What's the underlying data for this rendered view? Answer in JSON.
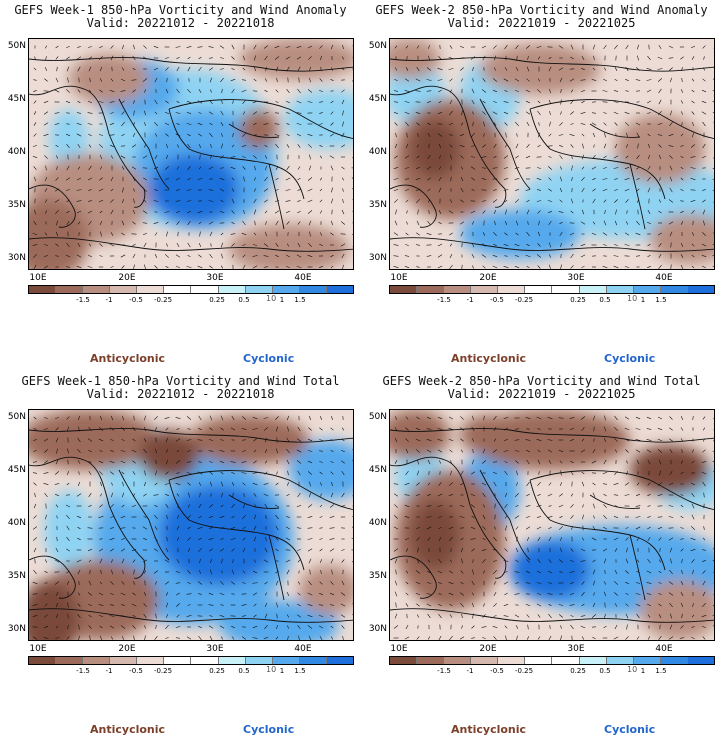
{
  "scale": {
    "colors": [
      "#7a4a3a",
      "#9c6a5a",
      "#b88e80",
      "#d6b9ae",
      "#ecdcd5",
      "#ffffff",
      "#ffffff",
      "#c9f2f8",
      "#8fd3f3",
      "#55a9ec",
      "#3189e3",
      "#1e6fdb"
    ],
    "ticks": [
      "-1.5",
      "-1",
      "-0.5",
      "-0.25",
      "0.25",
      "0.5",
      "1",
      "1.5"
    ],
    "unit": "10",
    "anticyclonic_label": "Anticyclonic",
    "cyclonic_label": "Cyclonic"
  },
  "axes": {
    "lat_labels": [
      "50N",
      "45N",
      "40N",
      "35N",
      "30N"
    ],
    "lon_labels": [
      "10E",
      "20E",
      "30E",
      "40E"
    ]
  },
  "panels": [
    {
      "title": "GEFS Week-1 850-hPa Vorticity and Wind Anomaly",
      "valid": "Valid: 20221012 - 20221018"
    },
    {
      "title": "GEFS Week-2 850-hPa Vorticity and Wind Anomaly",
      "valid": "Valid: 20221019 - 20221025"
    },
    {
      "title": "GEFS Week-1 850-hPa Vorticity and Wind Total",
      "valid": "Valid: 20221012 - 20221018"
    },
    {
      "title": "GEFS Week-2 850-hPa Vorticity and Wind Total",
      "valid": "Valid: 20221019 - 20221025"
    }
  ]
}
